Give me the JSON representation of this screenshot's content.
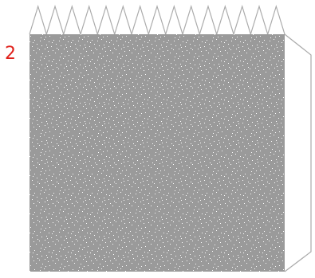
{
  "figure": {
    "label": "2",
    "label_color": "#e0201a",
    "panel_fill": "#9a9a9a",
    "speckle_color": "#ffffff",
    "outline_color": "#aaaaaa",
    "zigzag_teeth": 15
  }
}
